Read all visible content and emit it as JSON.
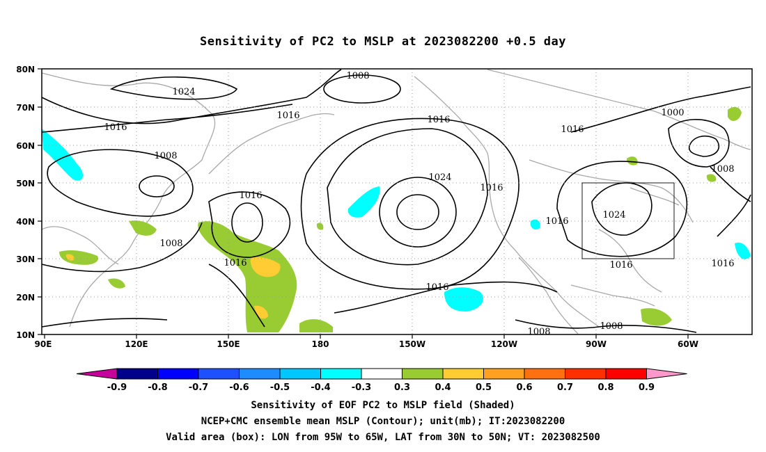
{
  "title": "Sensitivity of PC2 to MSLP at 2023082200 +0.5 day",
  "map": {
    "lat_labels": [
      "80N",
      "70N",
      "60N",
      "50N",
      "40N",
      "30N",
      "20N",
      "10N"
    ],
    "lon_labels": [
      "90E",
      "120E",
      "150E",
      "180",
      "150W",
      "120W",
      "90W",
      "60W"
    ],
    "contour_labels": [
      {
        "text": "1008"
      },
      {
        "text": "1024"
      },
      {
        "text": "1016"
      },
      {
        "text": "1016"
      },
      {
        "text": "1016"
      },
      {
        "text": "1016"
      },
      {
        "text": "1000"
      },
      {
        "text": "1008"
      },
      {
        "text": "1008"
      },
      {
        "text": "1016"
      },
      {
        "text": "1024"
      },
      {
        "text": "1016"
      },
      {
        "text": "1016"
      },
      {
        "text": "1024"
      },
      {
        "text": "1008"
      },
      {
        "text": "1016"
      },
      {
        "text": "1016"
      },
      {
        "text": "1016"
      },
      {
        "text": "1016"
      },
      {
        "text": "1008"
      },
      {
        "text": "1008"
      }
    ],
    "valid_box": {
      "lon_from": "95W",
      "lon_to": "65W",
      "lat_from": "30N",
      "lat_to": "50N"
    }
  },
  "colorbar": {
    "labels": [
      "-0.9",
      "-0.8",
      "-0.7",
      "-0.6",
      "-0.5",
      "-0.4",
      "-0.3",
      "0.3",
      "0.4",
      "0.5",
      "0.6",
      "0.7",
      "0.8",
      "0.9"
    ],
    "colors": [
      "#00008b",
      "#0000ff",
      "#1e50ff",
      "#1e8cff",
      "#00c8ff",
      "#00ffff",
      "#ffffff",
      "#99cc33",
      "#ffcc33",
      "#ffa020",
      "#ff7010",
      "#ff3000",
      "#ff0000"
    ],
    "low_end_color": "#c8009b",
    "high_end_color": "#ff99cc"
  },
  "captions": {
    "line1": "Sensitivity of EOF PC2 to MSLP field (Shaded)",
    "line2": "NCEP+CMC ensemble mean MSLP (Contour); unit(mb); IT:2023082200",
    "line3": "Valid area (box): LON from 95W to 65W, LAT from 30N to 50N; VT: 2023082500"
  }
}
